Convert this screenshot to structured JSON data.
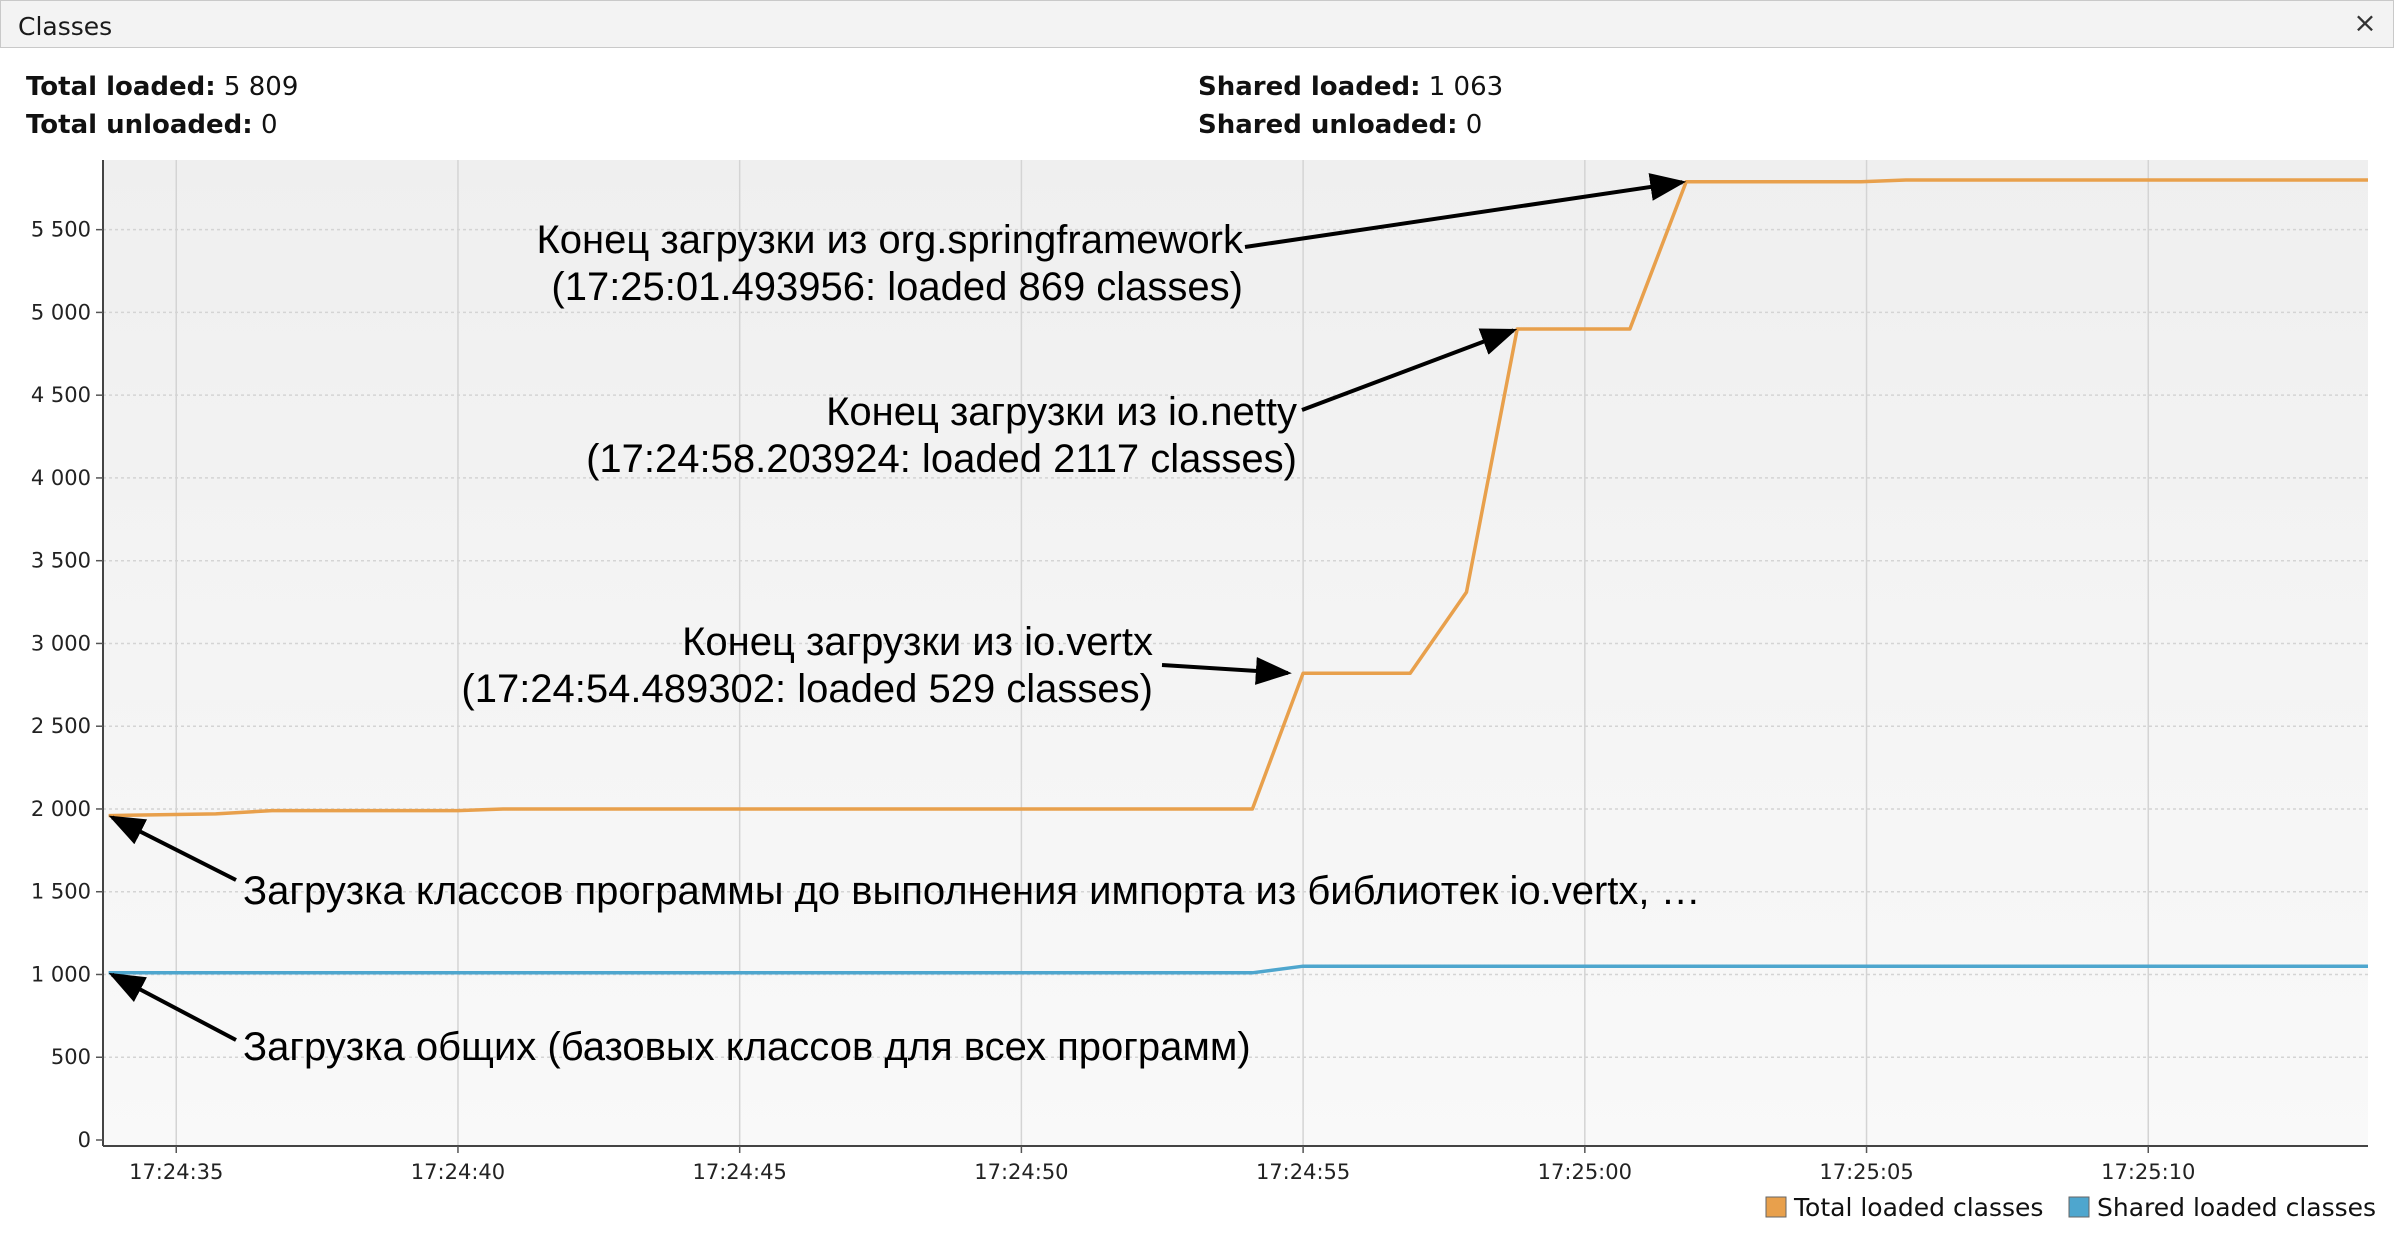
{
  "window": {
    "title": "Classes",
    "close_glyph": "×"
  },
  "stats": {
    "total_loaded_label": "Total loaded:",
    "total_loaded_value": "5 809",
    "total_unloaded_label": "Total unloaded:",
    "total_unloaded_value": "0",
    "shared_loaded_label": "Shared loaded:",
    "shared_loaded_value": "1 063",
    "shared_unloaded_label": "Shared unloaded:",
    "shared_unloaded_value": "0"
  },
  "colors": {
    "total_series": "#E8A04C",
    "shared_series": "#4EA6CE",
    "plot_bg_top": "#efefef",
    "plot_bg_bottom": "#f9f9f9",
    "grid": "#d4d4d4",
    "arrow": "#000000"
  },
  "chart_data": {
    "type": "line",
    "title": "",
    "xlabel": "",
    "ylabel": "",
    "x_unit": "time (hh:mm:ss)",
    "xlim": [
      "17:24:33.7",
      "17:25:13.9"
    ],
    "ylim": [
      0,
      5800
    ],
    "x_tick_labels": [
      "17:24:35",
      "17:24:40",
      "17:24:45",
      "17:24:50",
      "17:24:55",
      "17:25:00",
      "17:25:05",
      "17:25:10"
    ],
    "x_ticks": [
      "17:24:35",
      "17:24:40",
      "17:24:45",
      "17:24:50",
      "17:24:55",
      "17:25:00",
      "17:25:05",
      "17:25:10"
    ],
    "y_tick_labels": [
      "0",
      "500",
      "1 000",
      "1 500",
      "2 000",
      "2 500",
      "3 000",
      "3 500",
      "4 000",
      "4 500",
      "5 000",
      "5 500"
    ],
    "y_ticks": [
      0,
      500,
      1000,
      1500,
      2000,
      2500,
      3000,
      3500,
      4000,
      4500,
      5000,
      5500
    ],
    "grid": true,
    "legend_position": "bottom-right",
    "series": [
      {
        "name": "Total loaded classes",
        "color": "#E8A04C",
        "points": [
          {
            "x": "17:24:33.8",
            "y": 1960
          },
          {
            "x": "17:24:35.7",
            "y": 1970
          },
          {
            "x": "17:24:36.7",
            "y": 1990
          },
          {
            "x": "17:24:40.0",
            "y": 1990
          },
          {
            "x": "17:24:40.8",
            "y": 2000
          },
          {
            "x": "17:24:54.1",
            "y": 2000
          },
          {
            "x": "17:24:55.0",
            "y": 2820
          },
          {
            "x": "17:24:56.9",
            "y": 2820
          },
          {
            "x": "17:24:57.9",
            "y": 3310
          },
          {
            "x": "17:24:58.8",
            "y": 4900
          },
          {
            "x": "17:25:00.8",
            "y": 4900
          },
          {
            "x": "17:25:01.8",
            "y": 5790
          },
          {
            "x": "17:25:04.9",
            "y": 5790
          },
          {
            "x": "17:25:05.7",
            "y": 5800
          },
          {
            "x": "17:25:13.9",
            "y": 5800
          }
        ]
      },
      {
        "name": "Shared loaded classes",
        "color": "#4EA6CE",
        "points": [
          {
            "x": "17:24:33.8",
            "y": 1010
          },
          {
            "x": "17:24:54.1",
            "y": 1010
          },
          {
            "x": "17:24:55.0",
            "y": 1050
          },
          {
            "x": "17:25:13.9",
            "y": 1050
          }
        ]
      }
    ],
    "annotations": [
      {
        "lines": [
          "Конец загрузки из org.springframework",
          "(17:25:01.493956: loaded 869 classes)"
        ],
        "target": {
          "x": "17:25:01.8",
          "y": 5790
        }
      },
      {
        "lines": [
          "Конец загрузки из io.netty",
          "(17:24:58.203924: loaded 2117 classes)"
        ],
        "target": {
          "x": "17:24:58.8",
          "y": 4900
        }
      },
      {
        "lines": [
          "Конец загрузки из io.vertx",
          "(17:24:54.489302: loaded 529 classes)"
        ],
        "target": {
          "x": "17:24:54.8",
          "y": 2820
        }
      },
      {
        "lines": [
          "Загрузка классов программы до выполнения импорта из библиотек io.vertx, …"
        ],
        "target": {
          "x": "17:24:33.8",
          "y": 1960
        }
      },
      {
        "lines": [
          "Загрузка общих (базовых классов для всех программ)"
        ],
        "target": {
          "x": "17:24:33.8",
          "y": 1010
        }
      }
    ]
  }
}
